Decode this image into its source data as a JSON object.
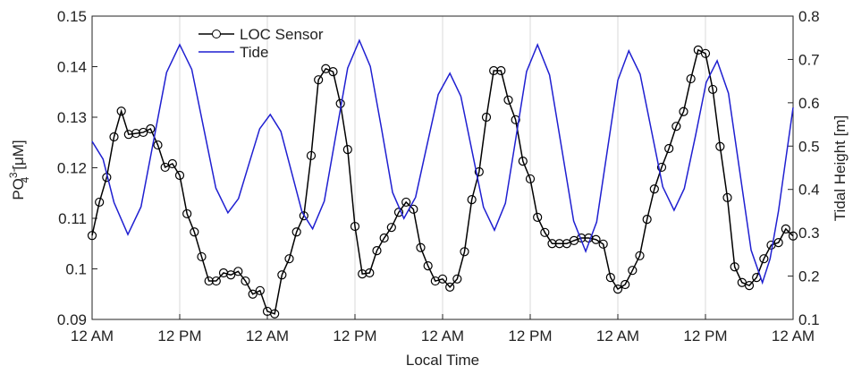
{
  "chart_data": {
    "type": "line",
    "xlabel": "Local Time",
    "ylabel": {
      "base": "PO",
      "sub": "4",
      "sup": "3-",
      "unit": "[μM]"
    },
    "y2label": "Tidal Height [m]",
    "xlim": [
      0,
      96
    ],
    "xticks": [
      {
        "value": 0,
        "label": "12 AM"
      },
      {
        "value": 12,
        "label": "12 PM"
      },
      {
        "value": 24,
        "label": "12 AM"
      },
      {
        "value": 36,
        "label": "12 PM"
      },
      {
        "value": 48,
        "label": "12 AM"
      },
      {
        "value": 60,
        "label": "12 PM"
      },
      {
        "value": 72,
        "label": "12 AM"
      },
      {
        "value": 84,
        "label": "12 PM"
      },
      {
        "value": 96,
        "label": "12 AM"
      }
    ],
    "ylim": [
      0.09,
      0.15
    ],
    "yticks": [
      0.09,
      0.1,
      0.11,
      0.12,
      0.13,
      0.14,
      0.15
    ],
    "y2lim": [
      0.1,
      0.8
    ],
    "y2ticks": [
      0.1,
      0.2,
      0.3,
      0.4,
      0.5,
      0.6,
      0.7,
      0.8
    ],
    "grid": true,
    "legend": "upper-left",
    "series": [
      {
        "name": "LOC Sensor",
        "color": "#000000",
        "marker": "circle",
        "x": [
          0,
          1,
          2,
          3,
          4,
          5,
          6,
          7,
          8,
          9,
          10,
          11,
          12,
          13,
          14,
          15,
          16,
          17,
          18,
          19,
          20,
          21,
          22,
          23,
          24,
          25,
          26,
          27,
          28,
          29,
          30,
          31,
          32,
          33,
          34,
          35,
          36,
          37,
          38,
          39,
          40,
          41,
          42,
          43,
          44,
          45,
          46,
          47,
          48,
          49,
          50,
          51,
          52,
          53,
          54,
          55,
          56,
          57,
          58,
          59,
          60,
          61,
          62,
          63,
          64,
          65,
          66,
          67,
          68,
          69,
          70,
          71,
          72,
          73,
          74,
          75,
          76,
          77,
          78,
          79,
          80,
          81,
          82,
          83,
          84,
          85,
          86,
          87,
          88,
          89,
          90,
          91,
          92,
          93,
          94,
          95,
          96
        ],
        "values": [
          0.1066,
          0.1132,
          0.1181,
          0.1261,
          0.1312,
          0.1266,
          0.1268,
          0.127,
          0.1277,
          0.1245,
          0.1201,
          0.1208,
          0.1185,
          0.1109,
          0.1073,
          0.1024,
          0.0976,
          0.0976,
          0.0992,
          0.0988,
          0.0995,
          0.0976,
          0.095,
          0.0957,
          0.0916,
          0.0911,
          0.0988,
          0.102,
          0.1073,
          0.1105,
          0.1224,
          0.1374,
          0.1396,
          0.139,
          0.1327,
          0.1236,
          0.1084,
          0.099,
          0.0992,
          0.1036,
          0.1061,
          0.1082,
          0.1112,
          0.1132,
          0.1118,
          0.1042,
          0.1006,
          0.0976,
          0.098,
          0.0964,
          0.098,
          0.1034,
          0.1137,
          0.1192,
          0.13,
          0.1392,
          0.1392,
          0.1334,
          0.1295,
          0.1213,
          0.1178,
          0.1102,
          0.1072,
          0.105,
          0.105,
          0.105,
          0.1056,
          0.1061,
          0.1061,
          0.1058,
          0.1049,
          0.0983,
          0.096,
          0.0969,
          0.0997,
          0.1026,
          0.1098,
          0.1158,
          0.1201,
          0.1238,
          0.1282,
          0.1311,
          0.1376,
          0.1433,
          0.1426,
          0.1355,
          0.1242,
          0.1141,
          0.1004,
          0.0973,
          0.0967,
          0.0983,
          0.102,
          0.1047,
          0.1052,
          0.1079,
          0.1065
        ]
      },
      {
        "name": "Tide",
        "color": "#1f1fd1",
        "axis": "y2",
        "x": [
          0,
          1.5,
          3,
          4.9,
          6.7,
          8.45,
          10.2,
          12,
          13.65,
          15.3,
          16.95,
          18.6,
          20.05,
          21.5,
          22.95,
          24.4,
          25.85,
          27.3,
          28.75,
          30.2,
          31.8,
          33.4,
          35,
          36.6,
          38.1,
          39.65,
          41.15,
          42.7,
          44.3,
          45.85,
          47.4,
          49,
          50.5,
          52.05,
          53.6,
          55.1,
          56.6,
          58.05,
          59.5,
          61,
          62.65,
          64.3,
          65.95,
          67.6,
          69.1,
          70.55,
          72,
          73.5,
          75.05,
          76.6,
          78.15,
          79.7,
          81.1,
          82.65,
          84.1,
          85.6,
          87.15,
          88.7,
          90.25,
          91.8,
          92.85,
          94,
          95,
          96
        ],
        "values": [
          0.511,
          0.47,
          0.37,
          0.296,
          0.36,
          0.515,
          0.67,
          0.734,
          0.677,
          0.54,
          0.403,
          0.346,
          0.379,
          0.46,
          0.54,
          0.573,
          0.534,
          0.441,
          0.348,
          0.309,
          0.373,
          0.527,
          0.68,
          0.744,
          0.684,
          0.539,
          0.393,
          0.333,
          0.382,
          0.501,
          0.619,
          0.668,
          0.615,
          0.487,
          0.359,
          0.306,
          0.368,
          0.52,
          0.672,
          0.734,
          0.664,
          0.496,
          0.327,
          0.257,
          0.325,
          0.489,
          0.652,
          0.72,
          0.666,
          0.536,
          0.406,
          0.352,
          0.402,
          0.525,
          0.647,
          0.697,
          0.622,
          0.441,
          0.26,
          0.185,
          0.24,
          0.35,
          0.47,
          0.589
        ]
      }
    ]
  }
}
